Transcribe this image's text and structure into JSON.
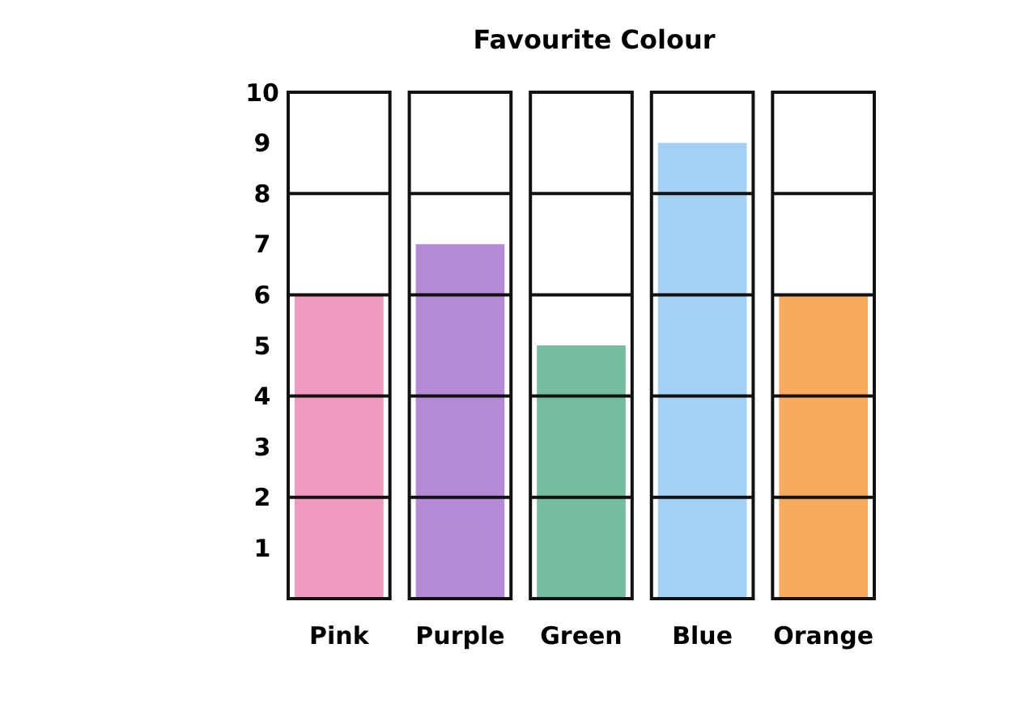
{
  "chart_data": {
    "type": "bar",
    "title": "Favourite Colour",
    "categories": [
      "Pink",
      "Purple",
      "Green",
      "Blue",
      "Orange"
    ],
    "values": [
      6,
      7,
      5,
      9,
      6
    ],
    "colors": [
      "#f09ac0",
      "#b48ad6",
      "#74bd9f",
      "#a3d0f5",
      "#f8ab5e"
    ],
    "ylim": [
      0,
      10
    ],
    "grid": "y",
    "yticks": [
      1,
      2,
      3,
      4,
      5,
      6,
      7,
      8,
      9,
      10
    ]
  }
}
